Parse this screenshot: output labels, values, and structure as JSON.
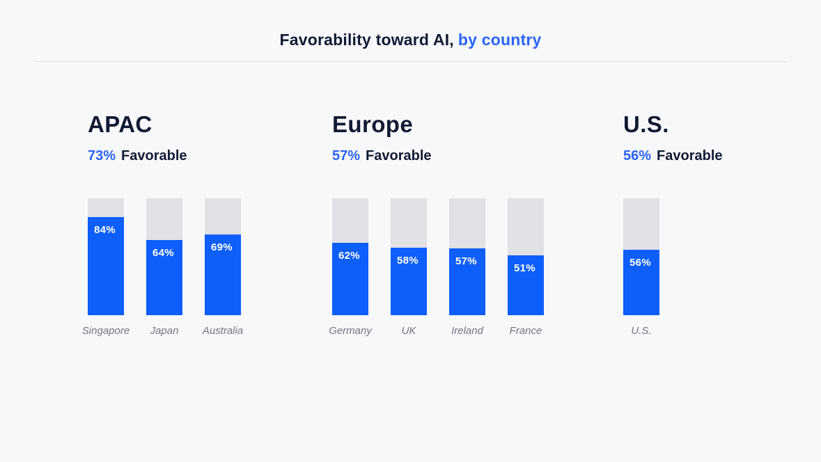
{
  "title": {
    "prefix": "Favorability toward AI,",
    "highlight": "by country"
  },
  "colors": {
    "background": "#f7f8fa",
    "heading_text": "#121a33",
    "accent_blue": "#2b63f7",
    "bar_fill": "#0d5efa",
    "bar_track": "#e0e0e5",
    "bar_value_text": "#ffffff",
    "country_label": "#74757f",
    "divider": "#dcdde2"
  },
  "chart_data": {
    "type": "bar",
    "title": "Favorability toward AI, by country",
    "unit": "%",
    "ylim": [
      0,
      100
    ],
    "orientation": "vertical",
    "grid": false,
    "legend": "none",
    "groups": [
      {
        "region": "APAC",
        "summary_value": "73%",
        "summary_label": "Favorable",
        "categories": [
          "Singapore",
          "Japan",
          "Australia"
        ],
        "values": [
          84,
          64,
          69
        ]
      },
      {
        "region": "Europe",
        "summary_value": "57%",
        "summary_label": "Favorable",
        "categories": [
          "Germany",
          "UK",
          "Ireland",
          "France"
        ],
        "values": [
          62,
          58,
          57,
          51
        ]
      },
      {
        "region": "U.S.",
        "summary_value": "56%",
        "summary_label": "Favorable",
        "categories": [
          "U.S."
        ],
        "values": [
          56
        ]
      }
    ]
  }
}
